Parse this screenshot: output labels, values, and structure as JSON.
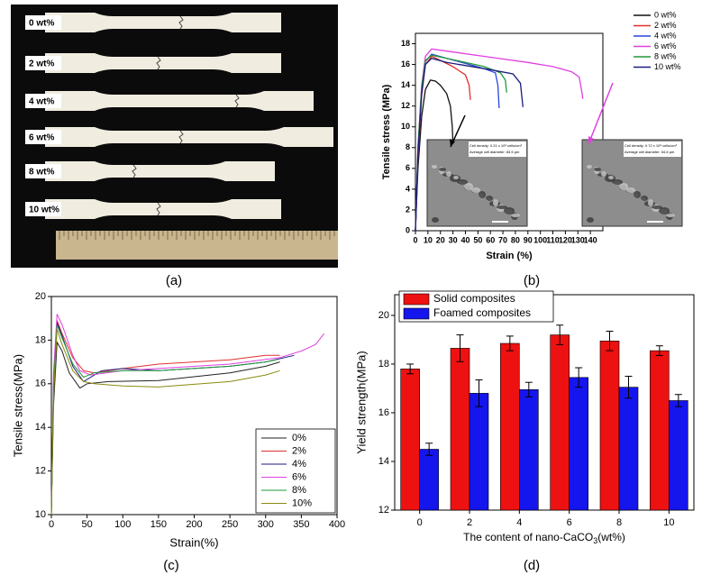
{
  "photo": {
    "labels": [
      "0 wt%",
      "2 wt%",
      "4 wt%",
      "6 wt%",
      "8 wt%",
      "10 wt%"
    ],
    "caption": "(a)"
  },
  "chart_data": [
    {
      "type": "line",
      "caption": "(b)",
      "xlabel": "Strain (%)",
      "ylabel": "Tensile stress (MPa)",
      "xlim": [
        0,
        150
      ],
      "ylim": [
        0,
        19
      ],
      "xticks": [
        0,
        10,
        20,
        30,
        40,
        50,
        60,
        70,
        80,
        90,
        100,
        110,
        120,
        130,
        140
      ],
      "yticks": [
        0,
        2,
        4,
        6,
        8,
        10,
        12,
        14,
        16,
        18
      ],
      "legend": "outside-top-right",
      "annotations": [
        "Cell density: 0.21 x 10⁸ cells/cm³",
        "Average cell diameter: 83.5 μm",
        "Cell density: 0.72 x 10⁸ cells/cm³",
        "Average cell diameter: 54.6 μm"
      ],
      "series": [
        {
          "name": "0 wt%",
          "color": "#111111",
          "x": [
            0,
            2,
            5,
            8,
            12,
            16,
            20,
            25,
            28,
            29.5,
            30
          ],
          "values": [
            0,
            6,
            11,
            13.6,
            14.5,
            14.4,
            14,
            13.2,
            12,
            10,
            8.5
          ]
        },
        {
          "name": "2 wt%",
          "color": "#e0302a",
          "x": [
            0,
            2,
            5,
            8,
            13,
            20,
            30,
            40,
            43,
            44
          ],
          "values": [
            0,
            7,
            13,
            16,
            16.8,
            16.4,
            15.8,
            15,
            14,
            12.6
          ]
        },
        {
          "name": "4 wt%",
          "color": "#2a44d8",
          "x": [
            0,
            2,
            5,
            8,
            13,
            25,
            40,
            55,
            64,
            66,
            67
          ],
          "values": [
            0,
            7.5,
            13.5,
            16.3,
            17,
            16.6,
            16.1,
            15.6,
            15.2,
            14,
            11.8
          ]
        },
        {
          "name": "6 wt%",
          "color": "#e040e0",
          "x": [
            0,
            2,
            5,
            8,
            13,
            30,
            60,
            90,
            110,
            125,
            131,
            133,
            134
          ],
          "values": [
            0,
            8,
            14,
            16.8,
            17.5,
            17.2,
            16.7,
            16.2,
            15.8,
            15.3,
            14.8,
            13.5,
            12.7
          ]
        },
        {
          "name": "8 wt%",
          "color": "#1f9a3a",
          "x": [
            0,
            2,
            5,
            8,
            13,
            25,
            40,
            55,
            68,
            72,
            73
          ],
          "values": [
            0,
            8,
            13.8,
            16.4,
            16.9,
            16.6,
            16.2,
            15.8,
            15.2,
            14.5,
            13.3
          ]
        },
        {
          "name": "10 wt%",
          "color": "#1b1b7e",
          "x": [
            0,
            2,
            5,
            8,
            13,
            25,
            40,
            60,
            78,
            84,
            86
          ],
          "values": [
            0,
            7.5,
            13.2,
            16,
            16.6,
            16.2,
            15.9,
            15.5,
            15.1,
            14.2,
            11.9
          ]
        }
      ]
    },
    {
      "type": "line",
      "caption": "(c)",
      "xlabel": "Strain(%)",
      "ylabel": "Tensile stress(MPa)",
      "xlim": [
        0,
        400
      ],
      "ylim": [
        10,
        20
      ],
      "xticks": [
        0,
        50,
        100,
        150,
        200,
        250,
        300,
        350,
        400
      ],
      "yticks": [
        10,
        12,
        14,
        16,
        18,
        20
      ],
      "legend": "bottom-right",
      "series": [
        {
          "name": "0%",
          "color": "#222222",
          "x": [
            0,
            3,
            8,
            15,
            25,
            40,
            50,
            80,
            150,
            250,
            300,
            320
          ],
          "values": [
            10,
            15,
            17.9,
            17.5,
            16.5,
            15.8,
            16,
            16.1,
            16.15,
            16.5,
            16.8,
            17
          ]
        },
        {
          "name": "2%",
          "color": "#e03030",
          "x": [
            0,
            3,
            8,
            15,
            30,
            45,
            60,
            100,
            150,
            250,
            300,
            320
          ],
          "values": [
            10,
            16,
            18.9,
            18.3,
            17.2,
            16.6,
            16.5,
            16.7,
            16.9,
            17.1,
            17.3,
            17.3
          ]
        },
        {
          "name": "4%",
          "color": "#1b1b7e",
          "x": [
            0,
            3,
            8,
            15,
            30,
            45,
            70,
            100,
            150,
            250,
            300,
            340
          ],
          "values": [
            10,
            16,
            18.8,
            18.2,
            16.8,
            16.1,
            16.6,
            16.7,
            16.6,
            16.8,
            17,
            17.3
          ]
        },
        {
          "name": "6%",
          "color": "#e040e0",
          "x": [
            0,
            3,
            8,
            15,
            30,
            40,
            55,
            100,
            150,
            250,
            320,
            350,
            370,
            382
          ],
          "values": [
            10,
            16.5,
            19.2,
            18.7,
            17.3,
            16.6,
            16.4,
            16.6,
            16.7,
            16.9,
            17.2,
            17.5,
            17.8,
            18.3
          ]
        },
        {
          "name": "8%",
          "color": "#1f9a3a",
          "x": [
            0,
            3,
            8,
            15,
            30,
            45,
            60,
            100,
            150,
            250,
            300,
            315
          ],
          "values": [
            10,
            16,
            18.7,
            18.1,
            16.9,
            16.3,
            16.5,
            16.6,
            16.6,
            16.8,
            17,
            17.1
          ]
        },
        {
          "name": "10%",
          "color": "#8a8a10",
          "x": [
            0,
            3,
            8,
            15,
            30,
            45,
            60,
            100,
            150,
            250,
            300,
            320
          ],
          "values": [
            10,
            15.5,
            18.5,
            17.8,
            16.6,
            16.1,
            16,
            15.9,
            15.85,
            16.1,
            16.4,
            16.6
          ]
        }
      ]
    },
    {
      "type": "bar",
      "caption": "(d)",
      "xlabel": [
        "The content of nano-CaCO",
        "3",
        "(wt%)"
      ],
      "ylabel": "Yield strength(MPa)",
      "categories": [
        "0",
        "2",
        "4",
        "6",
        "8",
        "10"
      ],
      "ylim": [
        12,
        20.85
      ],
      "yticks": [
        12,
        14,
        16,
        18,
        20
      ],
      "legend": "top-left",
      "series": [
        {
          "name": "Solid composites",
          "color": "#ee1111",
          "values": [
            17.8,
            18.65,
            18.85,
            19.2,
            18.95,
            18.55
          ],
          "errors": [
            0.2,
            0.55,
            0.3,
            0.4,
            0.4,
            0.2
          ]
        },
        {
          "name": "Foamed composites",
          "color": "#1515ee",
          "values": [
            14.5,
            16.8,
            16.95,
            17.45,
            17.05,
            16.5
          ],
          "errors": [
            0.25,
            0.55,
            0.3,
            0.4,
            0.45,
            0.25
          ]
        }
      ]
    }
  ]
}
